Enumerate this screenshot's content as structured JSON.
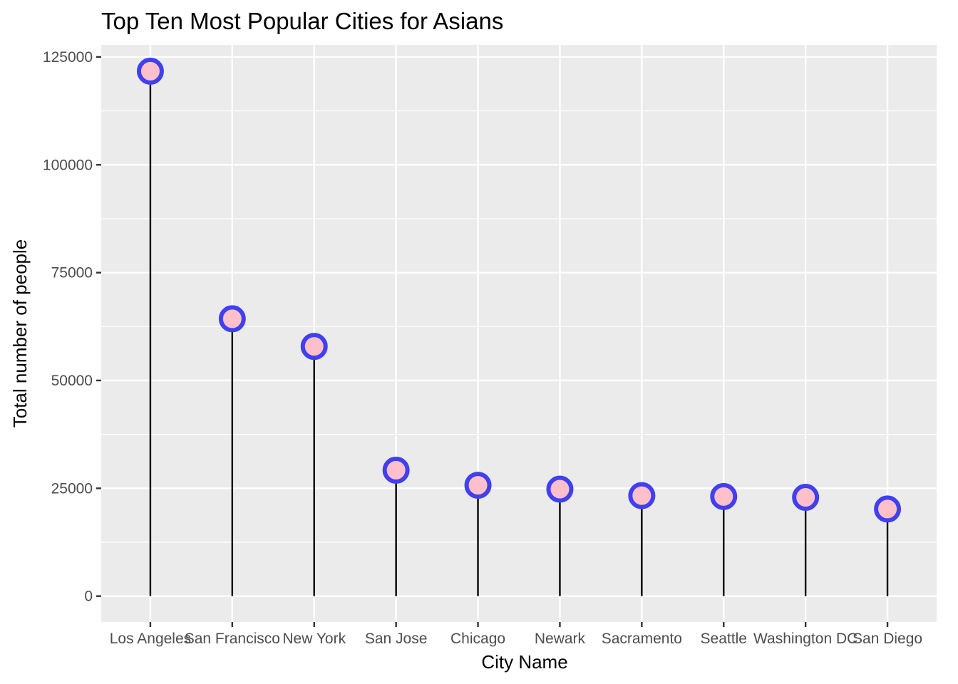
{
  "chart_data": {
    "type": "lollipop",
    "title": "Top Ten Most Popular Cities for Asians",
    "xlabel": "City Name",
    "ylabel": "Total number of people",
    "categories": [
      "Los Angeles",
      "San Francisco",
      "New York",
      "San Jose",
      "Chicago",
      "Newark",
      "Sacramento",
      "Seattle",
      "Washington DC",
      "San Diego"
    ],
    "values": [
      121700,
      64300,
      57900,
      29200,
      25700,
      24800,
      23300,
      23100,
      22900,
      20200
    ],
    "y_ticks": [
      0,
      25000,
      50000,
      75000,
      100000,
      125000
    ],
    "ylim": [
      -6000,
      127800
    ],
    "grid": true,
    "legend": "none",
    "colors": {
      "panel": "#ebebeb",
      "gridline": "#ffffff",
      "stem": "#000000",
      "marker_fill": "#ffc0cb",
      "marker_outline": "#4040f0"
    }
  }
}
